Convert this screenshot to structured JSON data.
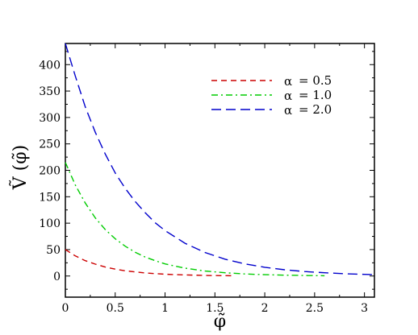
{
  "chart_data": {
    "type": "line",
    "xlabel": "φ̃",
    "ylabel": "Ṽ (φ̃)",
    "xlim": [
      0,
      3.1
    ],
    "ylim": [
      -40,
      440
    ],
    "xticks": [
      0,
      0.5,
      1,
      1.5,
      2,
      2.5,
      3
    ],
    "xtick_labels": [
      "0",
      "0.5",
      "1",
      "1.5",
      "2",
      "2.5",
      "3"
    ],
    "yticks": [
      0,
      50,
      100,
      150,
      200,
      250,
      300,
      350,
      400
    ],
    "ytick_labels": [
      "0",
      "50",
      "100",
      "150",
      "200",
      "250",
      "300",
      "350",
      "400"
    ],
    "grid": false,
    "legend_position": "top-right",
    "series": [
      {
        "name": "α = 0.5",
        "label_symbol": "α",
        "label_value": "= 0.5",
        "color": "#cc0000",
        "dash": "dashed",
        "x": [
          0,
          0.1,
          0.2,
          0.3,
          0.4,
          0.5,
          0.6,
          0.7,
          0.8,
          0.9,
          1.0,
          1.1,
          1.2,
          1.3,
          1.4,
          1.5,
          1.6,
          1.7
        ],
        "y": [
          50,
          38,
          29,
          22.5,
          17,
          13,
          10,
          7.7,
          5.9,
          4.5,
          3.5,
          2.7,
          2.1,
          1.6,
          1.2,
          0.9,
          0.7,
          0.5
        ]
      },
      {
        "name": "α = 1.0",
        "label_symbol": "α",
        "label_value": "= 1.0",
        "color": "#00cc00",
        "dash": "dashdot",
        "x": [
          0,
          0.1,
          0.2,
          0.3,
          0.4,
          0.5,
          0.6,
          0.7,
          0.8,
          0.9,
          1.0,
          1.2,
          1.4,
          1.6,
          1.8,
          2.0,
          2.2,
          2.4,
          2.6
        ],
        "y": [
          215,
          172,
          138,
          110,
          88,
          70.5,
          56.5,
          45,
          36,
          29,
          23,
          14.8,
          9.5,
          6.1,
          3.9,
          2.5,
          1.6,
          1.0,
          0.6
        ]
      },
      {
        "name": "α = 2.0",
        "label_symbol": "α",
        "label_value": "= 2.0",
        "color": "#0000cc",
        "dash": "longdash",
        "x": [
          0,
          0.1,
          0.2,
          0.3,
          0.4,
          0.5,
          0.6,
          0.7,
          0.8,
          0.9,
          1.0,
          1.2,
          1.4,
          1.6,
          1.8,
          2.0,
          2.2,
          2.4,
          2.6,
          2.8,
          3.0,
          3.1
        ],
        "y": [
          445,
          378,
          320,
          272,
          231,
          195,
          166,
          141,
          120,
          101,
          86,
          62,
          44.5,
          32,
          23,
          16.5,
          11.8,
          8.5,
          6.1,
          4.4,
          3.1,
          2.6
        ]
      }
    ]
  }
}
